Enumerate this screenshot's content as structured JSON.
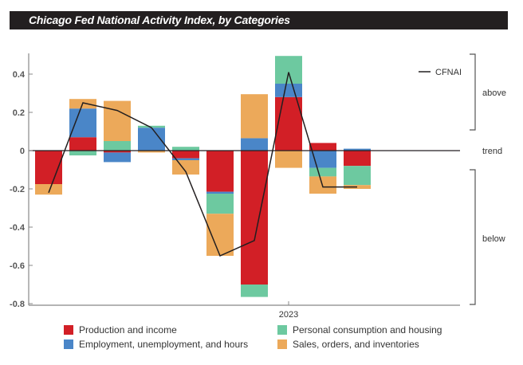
{
  "chart_data": {
    "type": "bar",
    "stacked": true,
    "title": "Chicago Fed National Activity Index, by Categories",
    "xlabel": "",
    "ylabel": "",
    "ylim": [
      -0.8,
      0.5
    ],
    "yticks": [
      0.4,
      0.2,
      0,
      -0.2,
      -0.4,
      -0.6,
      -0.8
    ],
    "ytick_labels": [
      "0.4",
      "0.2",
      "0",
      "-0.2",
      "-0.4",
      "-0.6",
      "-0.8"
    ],
    "categories": [
      "",
      "",
      "",
      "",
      "",
      "",
      "",
      "2023",
      "",
      ""
    ],
    "grid": false,
    "legend_position": "bottom",
    "series": [
      {
        "name": "Production and income",
        "color": "#d21f26",
        "values": [
          -0.175,
          0.07,
          -0.01,
          0,
          -0.04,
          -0.215,
          -0.7,
          0.28,
          0.04,
          -0.08
        ]
      },
      {
        "name": "Employment, unemployment, and hours",
        "color": "#4a86c8",
        "values": [
          0,
          0.15,
          -0.05,
          0.12,
          -0.01,
          -0.01,
          0.065,
          0.07,
          -0.09,
          0.01
        ]
      },
      {
        "name": "Personal consumption and housing",
        "color": "#6dc9a0",
        "values": [
          0,
          -0.025,
          0.05,
          0.01,
          0.02,
          -0.105,
          -0.065,
          0.145,
          -0.045,
          -0.1
        ]
      },
      {
        "name": "Sales, orders, and inventories",
        "color": "#eca95a",
        "values": [
          -0.055,
          0.05,
          0.21,
          -0.01,
          -0.075,
          -0.22,
          0.23,
          -0.09,
          -0.09,
          -0.02
        ]
      }
    ],
    "line_series": {
      "name": "CFNAI",
      "color": "#231f20",
      "values": [
        -0.22,
        0.25,
        0.21,
        0.12,
        -0.11,
        -0.55,
        -0.47,
        0.41,
        -0.19,
        -0.19
      ]
    },
    "side_labels": {
      "above": "above",
      "trend": "trend",
      "below": "below"
    }
  }
}
